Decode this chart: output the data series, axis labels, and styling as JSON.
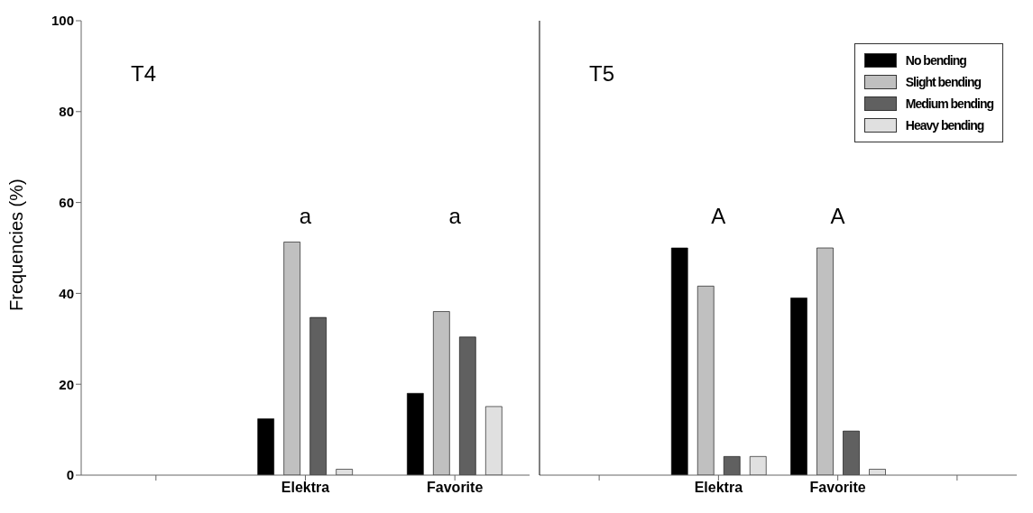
{
  "chart_data": [
    {
      "type": "bar",
      "ylabel": "Frequencies (%)",
      "categories": [
        null,
        "Elektra",
        "Favorite"
      ],
      "ylim": [
        0,
        100
      ],
      "yticks": [
        0,
        20,
        40,
        60,
        80,
        100
      ],
      "grid": false,
      "legend": false,
      "series": [
        {
          "color": "#000000",
          "values": [
            null,
            12.4,
            18.0
          ]
        },
        {
          "color": "#c0c0c0",
          "values": [
            null,
            51.3,
            36.0
          ]
        },
        {
          "color": "#606060",
          "values": [
            null,
            34.7,
            30.4
          ]
        },
        {
          "color": "#e0e0e0",
          "values": [
            null,
            1.3,
            15.1
          ]
        }
      ],
      "annotations": [
        "T4",
        "a",
        "a"
      ]
    },
    {
      "type": "bar",
      "categories": [
        null,
        "Elektra",
        "Favorite",
        null
      ],
      "ylim": [
        0,
        100
      ],
      "tick_labels": "x",
      "grid": false,
      "legend": "top right",
      "series": [
        {
          "name": "No bending",
          "color": "#000000",
          "values": [
            null,
            50.0,
            39.0,
            null
          ]
        },
        {
          "name": "Slight bending",
          "color": "#c0c0c0",
          "values": [
            null,
            41.6,
            50.0,
            null
          ]
        },
        {
          "name": "Medium bending",
          "color": "#606060",
          "values": [
            null,
            4.1,
            9.7,
            null
          ]
        },
        {
          "name": "Heavy bending",
          "color": "#e0e0e0",
          "values": [
            null,
            4.1,
            1.3,
            null
          ]
        }
      ],
      "annotations": [
        "T5",
        "A",
        "A"
      ]
    }
  ]
}
